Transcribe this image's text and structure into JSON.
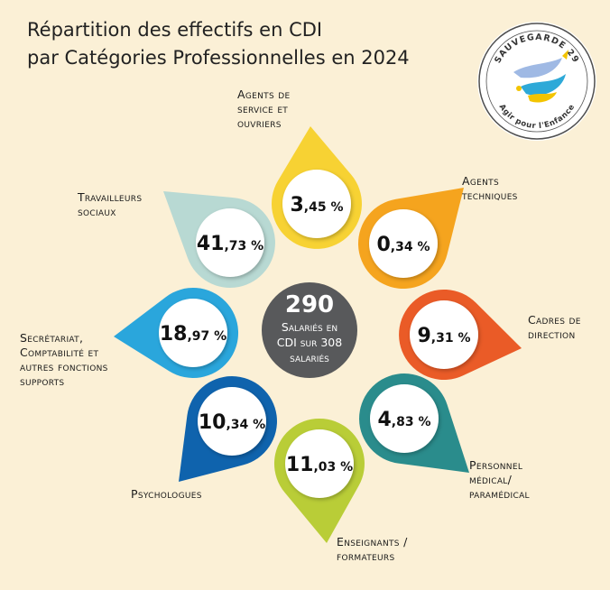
{
  "title": {
    "line1": "Répartition des effectifs en CDI",
    "line2": "par Catégories Professionnelles en 2024"
  },
  "logo": {
    "arc_top": "SAUVEGARDE 29",
    "arc_bottom": "Agir pour l'Enfance",
    "icon": "bird-hand-logo"
  },
  "colors": {
    "background": "#fbf0d6",
    "center": "#58595b",
    "agents_service": "#f7d233",
    "agents_techniques": "#f5a41e",
    "cadres": "#ea5b27",
    "medical": "#2a8c8c",
    "enseignants": "#b9cd37",
    "psychologues": "#0f63ad",
    "secretariat": "#2aa6dc",
    "travailleurs": "#b8d9d3"
  },
  "center": {
    "number": "290",
    "line1": "Salariés en",
    "line2": "CDI sur 308",
    "line3": "salariés"
  },
  "chart_data": {
    "type": "radial-infographic",
    "title": "Répartition des effectifs en CDI par Catégories Professionnelles en 2024",
    "total_cdi": 290,
    "total_salaries": 308,
    "unit": "%",
    "categories": [
      {
        "key": "agents_service",
        "label_lines": [
          "Agents de",
          "service et",
          "ouvriers"
        ],
        "value": 3.45,
        "int": "3",
        "dec": ",45 %",
        "color": "#f7d233"
      },
      {
        "key": "agents_techniques",
        "label_lines": [
          "Agents",
          "techniques"
        ],
        "value": 0.34,
        "int": "0",
        "dec": ",34 %",
        "color": "#f5a41e"
      },
      {
        "key": "cadres",
        "label_lines": [
          "Cadres de",
          "direction"
        ],
        "value": 9.31,
        "int": "9",
        "dec": ",31 %",
        "color": "#ea5b27"
      },
      {
        "key": "medical",
        "label_lines": [
          "Personnel",
          "médical/",
          "paramédical"
        ],
        "value": 4.83,
        "int": "4",
        "dec": ",83 %",
        "color": "#2a8c8c"
      },
      {
        "key": "enseignants",
        "label_lines": [
          "Enseignants /",
          "formateurs"
        ],
        "value": 11.03,
        "int": "11",
        "dec": ",03 %",
        "color": "#b9cd37"
      },
      {
        "key": "psychologues",
        "label_lines": [
          "Psychologues"
        ],
        "value": 10.34,
        "int": "10",
        "dec": ",34 %",
        "color": "#0f63ad"
      },
      {
        "key": "secretariat",
        "label_lines": [
          "Secrétariat,",
          "Comptabilité et",
          "autres fonctions",
          "supports"
        ],
        "value": 18.97,
        "int": "18",
        "dec": ",97 %",
        "color": "#2aa6dc"
      },
      {
        "key": "travailleurs",
        "label_lines": [
          "Travailleurs",
          "sociaux"
        ],
        "value": 41.73,
        "int": "41",
        "dec": ",73 %",
        "color": "#b8d9d3"
      }
    ]
  }
}
